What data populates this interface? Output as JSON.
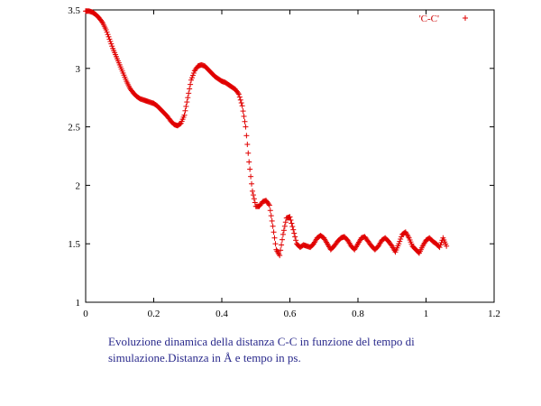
{
  "chart_data": {
    "type": "scatter",
    "title": "",
    "xlabel": "",
    "ylabel": "",
    "xlim": [
      0,
      1.2
    ],
    "ylim": [
      1,
      3.5
    ],
    "x_ticks": [
      "0",
      "0.2",
      "0.4",
      "0.6",
      "0.8",
      "1",
      "1.2"
    ],
    "y_ticks": [
      "1",
      "1.5",
      "2",
      "2.5",
      "3",
      "3.5"
    ],
    "legend": {
      "position": "top-right",
      "label": "'C-C'"
    },
    "grid": false,
    "series": [
      {
        "name": "'C-C'",
        "color": "#e00000",
        "marker": "plus",
        "x": [
          0.0,
          0.01,
          0.02,
          0.03,
          0.04,
          0.05,
          0.06,
          0.07,
          0.08,
          0.09,
          0.1,
          0.11,
          0.12,
          0.13,
          0.14,
          0.15,
          0.16,
          0.17,
          0.18,
          0.19,
          0.2,
          0.21,
          0.22,
          0.23,
          0.24,
          0.25,
          0.26,
          0.27,
          0.28,
          0.29,
          0.3,
          0.31,
          0.32,
          0.33,
          0.34,
          0.35,
          0.36,
          0.37,
          0.38,
          0.39,
          0.4,
          0.41,
          0.42,
          0.43,
          0.44,
          0.45,
          0.46,
          0.47,
          0.48,
          0.49,
          0.5,
          0.51,
          0.52,
          0.53,
          0.54,
          0.55,
          0.56,
          0.57,
          0.58,
          0.59,
          0.6,
          0.61,
          0.62,
          0.63,
          0.64,
          0.65,
          0.66,
          0.67,
          0.68,
          0.69,
          0.7,
          0.71,
          0.72,
          0.73,
          0.74,
          0.75,
          0.76,
          0.77,
          0.78,
          0.79,
          0.8,
          0.81,
          0.82,
          0.83,
          0.84,
          0.85,
          0.86,
          0.87,
          0.88,
          0.89,
          0.9,
          0.91,
          0.92,
          0.93,
          0.94,
          0.95,
          0.96,
          0.97,
          0.98,
          0.99,
          1.0,
          1.01,
          1.02,
          1.03,
          1.04,
          1.05,
          1.06
        ],
        "y": [
          3.49,
          3.49,
          3.48,
          3.46,
          3.43,
          3.39,
          3.33,
          3.25,
          3.17,
          3.1,
          3.03,
          2.96,
          2.89,
          2.83,
          2.79,
          2.76,
          2.74,
          2.73,
          2.72,
          2.71,
          2.7,
          2.68,
          2.65,
          2.62,
          2.59,
          2.55,
          2.52,
          2.51,
          2.53,
          2.6,
          2.75,
          2.9,
          2.98,
          3.02,
          3.03,
          3.02,
          2.99,
          2.96,
          2.93,
          2.91,
          2.89,
          2.88,
          2.86,
          2.84,
          2.82,
          2.78,
          2.68,
          2.5,
          2.2,
          1.95,
          1.82,
          1.82,
          1.86,
          1.87,
          1.83,
          1.65,
          1.45,
          1.4,
          1.58,
          1.72,
          1.73,
          1.62,
          1.5,
          1.47,
          1.49,
          1.48,
          1.47,
          1.5,
          1.55,
          1.57,
          1.55,
          1.5,
          1.45,
          1.48,
          1.52,
          1.55,
          1.56,
          1.53,
          1.48,
          1.45,
          1.5,
          1.55,
          1.56,
          1.52,
          1.48,
          1.45,
          1.48,
          1.53,
          1.55,
          1.52,
          1.48,
          1.43,
          1.5,
          1.58,
          1.6,
          1.55,
          1.48,
          1.45,
          1.42,
          1.48,
          1.53,
          1.55,
          1.52,
          1.5,
          1.47,
          1.55,
          1.48
        ]
      }
    ]
  },
  "caption_line1": "Evoluzione dinamica della distanza C-C in funzione del tempo di",
  "caption_line2": "simulazione.Distanza in Å e tempo in ps."
}
